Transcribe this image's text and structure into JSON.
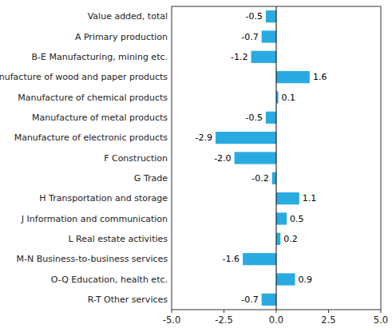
{
  "chart_data": {
    "type": "bar",
    "orientation": "horizontal",
    "categories": [
      "R-T Other services",
      "O-Q Education, health etc.",
      "M-N Business-to-business services",
      "L Real estate activities",
      "J Information and communication",
      "H Transportation and storage",
      "G Trade",
      "F Construction",
      "Manufacture of electronic products",
      "Manufacture of metal products",
      "Manufacture of chemical products",
      "Manufacture of wood and paper products",
      "B-E Manufacturing, mining etc.",
      "A Primary production",
      "Value added, total"
    ],
    "values": [
      -0.7,
      0.9,
      -1.6,
      0.2,
      0.5,
      1.1,
      -0.2,
      -2.0,
      -2.9,
      -0.5,
      0.1,
      1.6,
      -1.2,
      -0.7,
      -0.5
    ],
    "value_labels": [
      "-0.7",
      "0.9",
      "-1.6",
      "0.2",
      "0.5",
      "1.1",
      "-0.2",
      "-2.0",
      "-2.9",
      "-0.5",
      "0.1",
      "1.6",
      "-1.2",
      "-0.7",
      "-0.5"
    ],
    "data_labels": true,
    "color": "#29ABE2",
    "xlim": [
      -5.0,
      5.0
    ],
    "xticks": [
      {
        "value": -5.0,
        "label": "-5.0"
      },
      {
        "value": -2.5,
        "label": "-2.5"
      },
      {
        "value": 0.0,
        "label": "0.0"
      },
      {
        "value": 2.5,
        "label": "2.5"
      },
      {
        "value": 5.0,
        "label": "5.0"
      }
    ],
    "grid": false
  }
}
